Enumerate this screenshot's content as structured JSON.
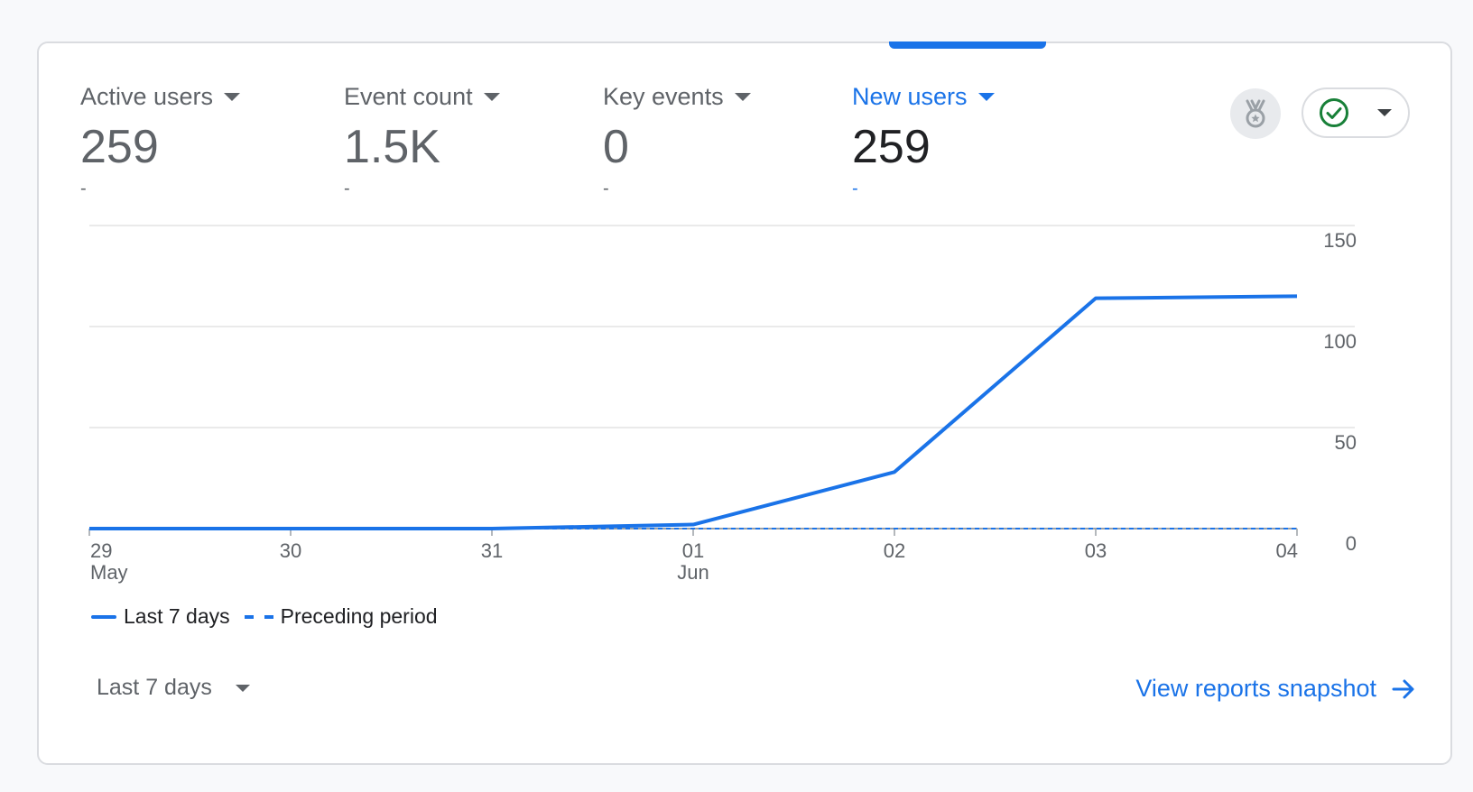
{
  "metrics": [
    {
      "label": "Active users",
      "value": "259",
      "delta": "-"
    },
    {
      "label": "Event count",
      "value": "1.5K",
      "delta": "-"
    },
    {
      "label": "Key events",
      "value": "0",
      "delta": "-"
    },
    {
      "label": "New users",
      "value": "259",
      "delta": "-"
    }
  ],
  "selected_metric": "New users",
  "icons": {
    "medal": "medal-icon",
    "status": "check-circle-icon",
    "dropdown": "caret-down-icon",
    "link": "arrow-right-icon"
  },
  "colors": {
    "accent": "#1a73e8",
    "status_ok": "#188038"
  },
  "chart_data": {
    "type": "line",
    "x": [
      "29 May",
      "30",
      "31",
      "01 Jun",
      "02",
      "03",
      "04"
    ],
    "x_tick_lines": [
      [
        "29",
        "May"
      ],
      [
        "30"
      ],
      [
        "31"
      ],
      [
        "01",
        "Jun"
      ],
      [
        "02"
      ],
      [
        "03"
      ],
      [
        "04"
      ]
    ],
    "y_ticks": [
      "0",
      "50",
      "100",
      "150"
    ],
    "ylim": [
      0,
      150
    ],
    "y_axis_side": "right",
    "grid": true,
    "series": [
      {
        "name": "Last 7 days",
        "style": "solid",
        "values": [
          0,
          0,
          0,
          2,
          28,
          114,
          115
        ]
      },
      {
        "name": "Preceding period",
        "style": "dashed",
        "values": [
          0,
          0,
          0,
          0,
          0,
          0,
          0
        ]
      }
    ],
    "legend_position": "bottom-left"
  },
  "footer": {
    "range_label": "Last 7 days",
    "link_label": "View reports snapshot"
  }
}
